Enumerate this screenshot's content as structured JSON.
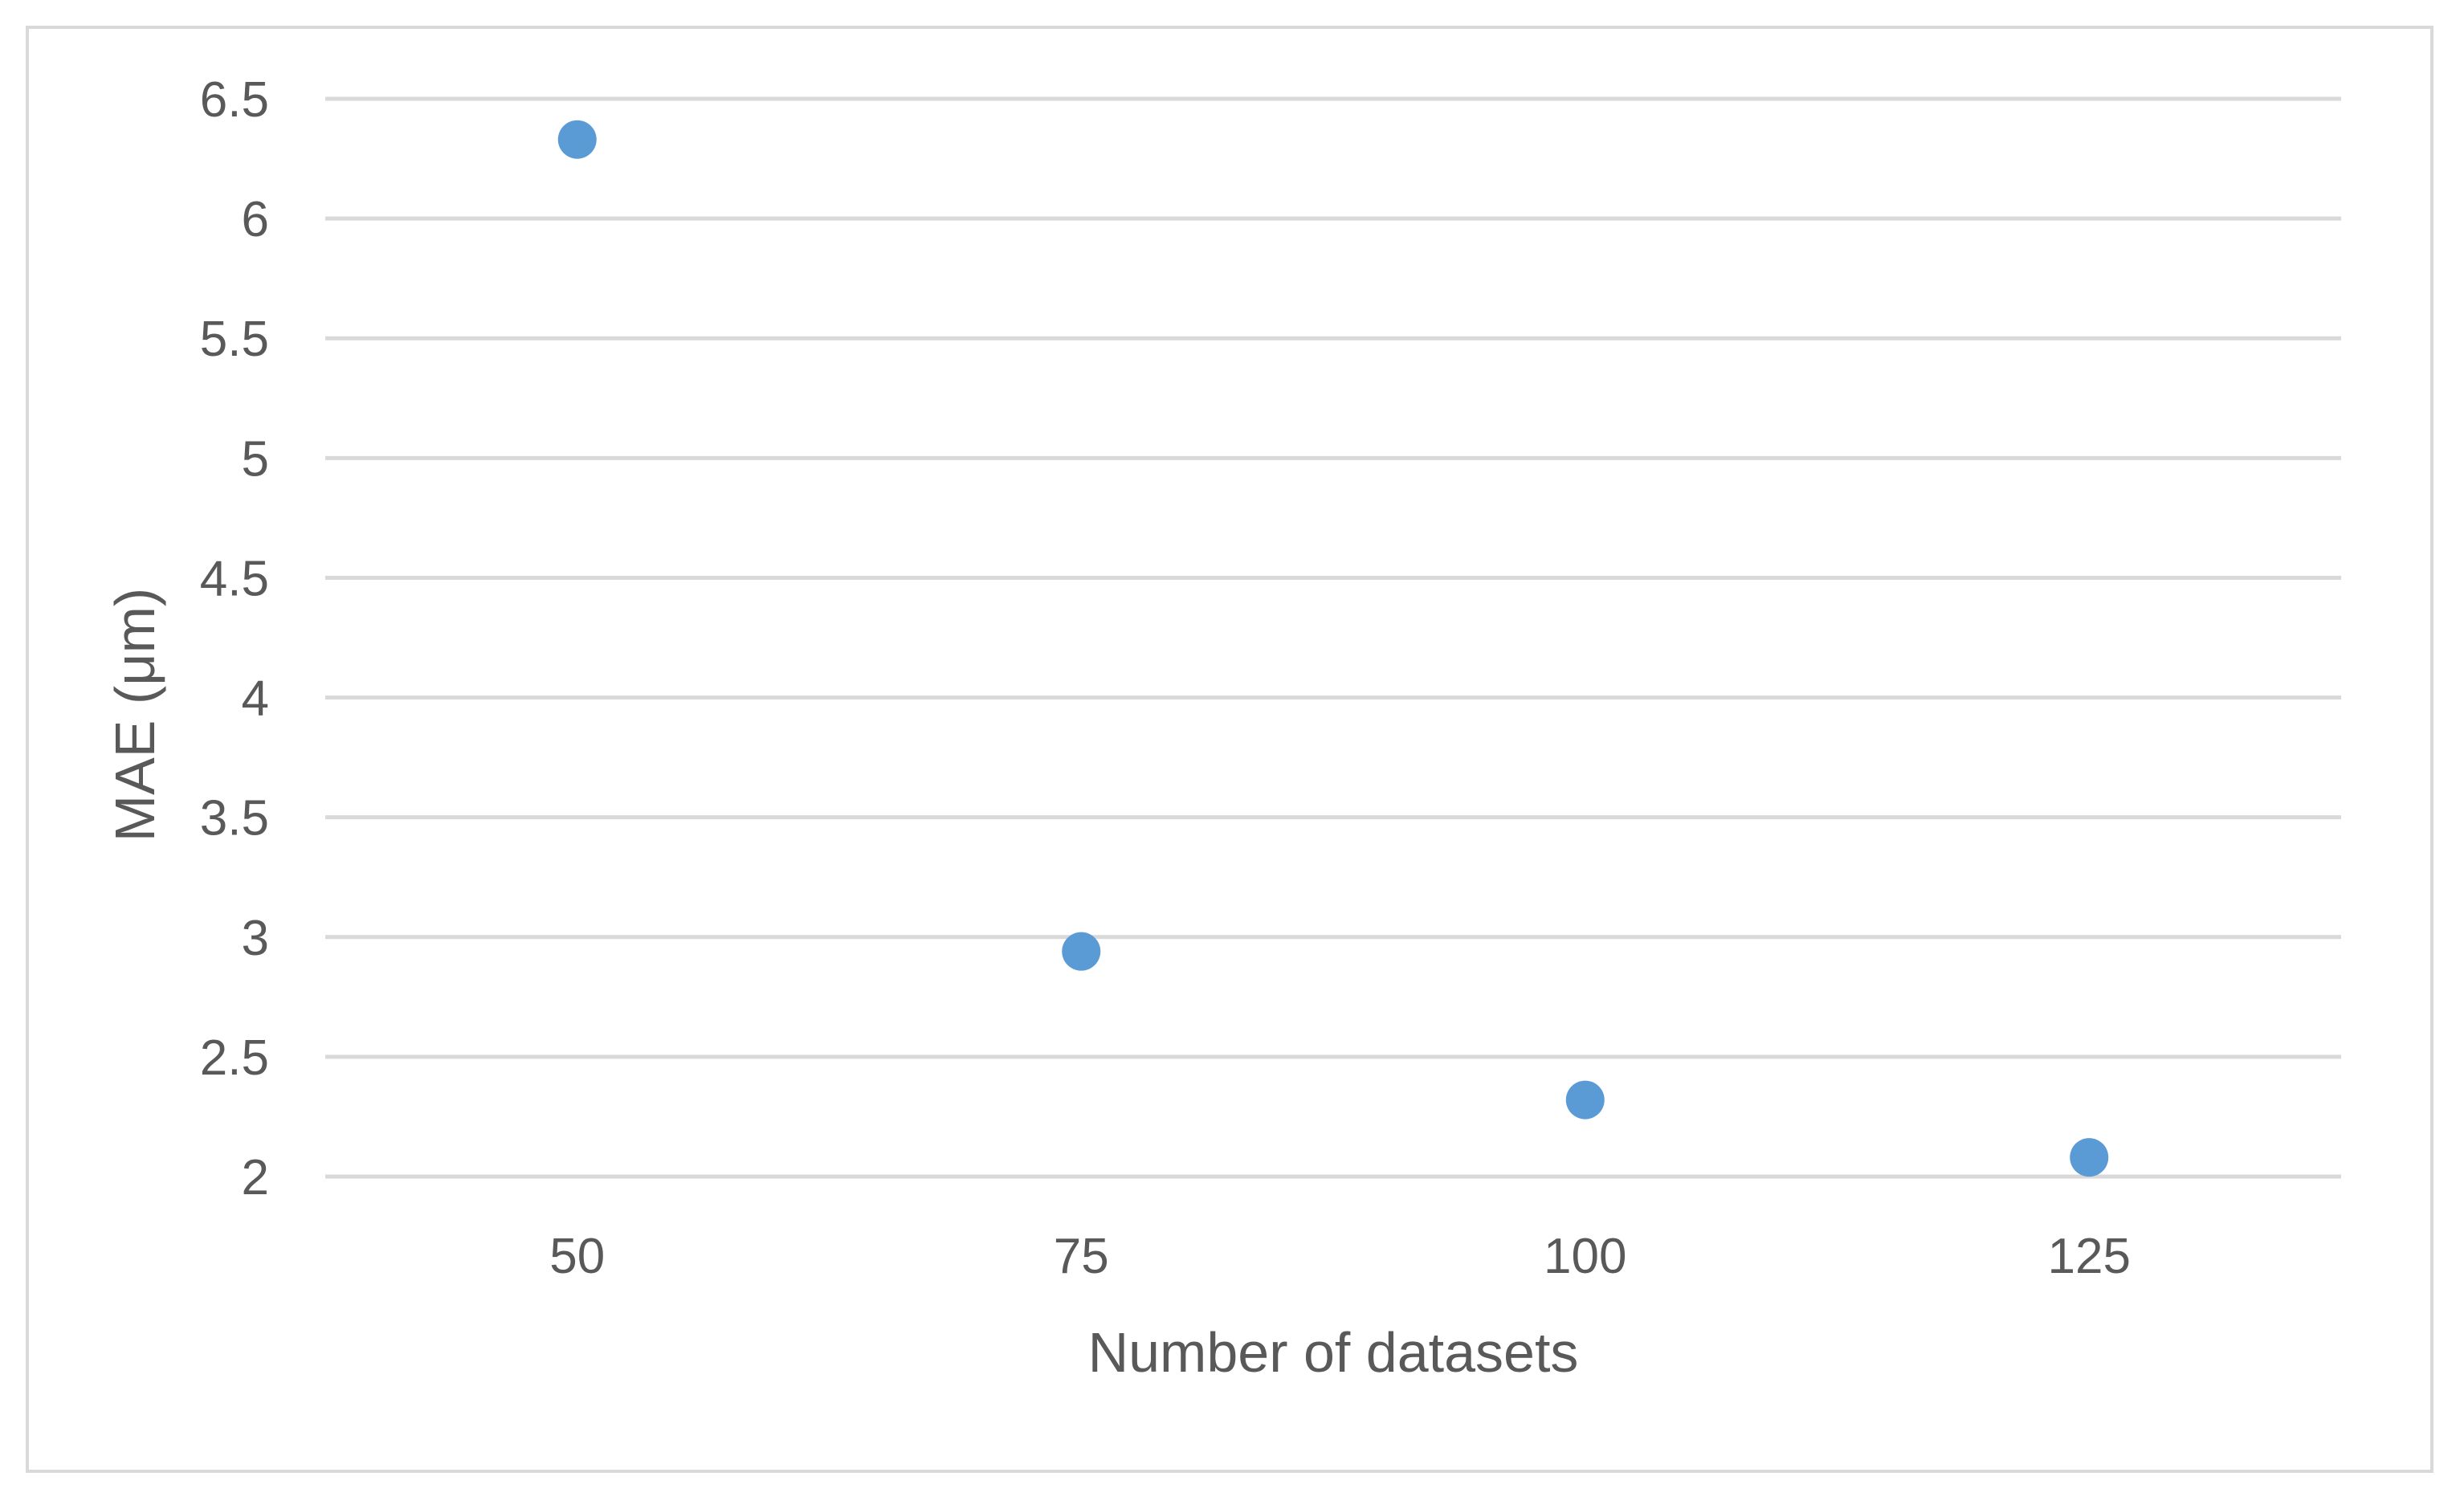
{
  "chart_data": {
    "type": "scatter",
    "title": "",
    "xlabel": "Number of datasets",
    "ylabel": "MAE (μm)",
    "xlim": [
      37.5,
      137.5
    ],
    "ylim": [
      2,
      6.5
    ],
    "x_ticks": [
      50,
      75,
      100,
      125
    ],
    "y_ticks": [
      2,
      2.5,
      3,
      3.5,
      4,
      4.5,
      5,
      5.5,
      6,
      6.5
    ],
    "grid": "horizontal",
    "legend": "none",
    "marker_color": "#5b9bd5",
    "series": [
      {
        "x": [
          50,
          75,
          100,
          125
        ],
        "y": [
          6.33,
          2.94,
          2.32,
          2.08
        ]
      }
    ]
  }
}
